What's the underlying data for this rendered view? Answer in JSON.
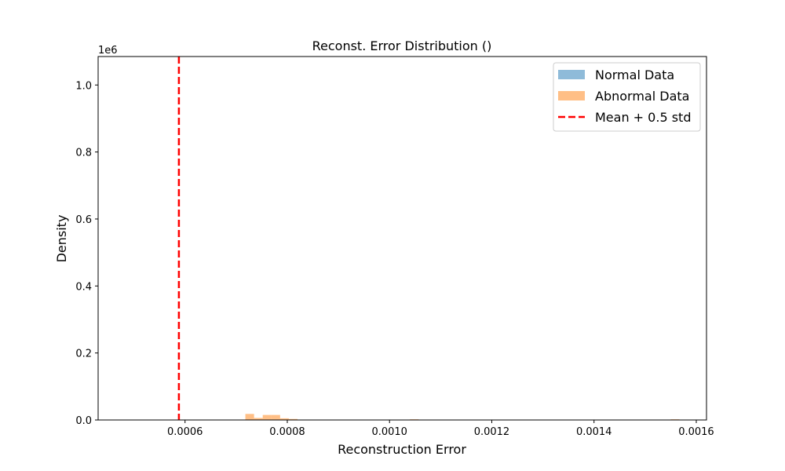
{
  "chart_data": {
    "type": "histogram",
    "title": "Reconst. Error Distribution ()",
    "xlabel": "Reconstruction Error",
    "ylabel": "Density",
    "y_offset_text": "1e6",
    "xlim": [
      0.00043,
      0.00162
    ],
    "ylim": [
      0,
      1.085
    ],
    "y_scale": 1000000,
    "x_ticks": [
      0.0006,
      0.0008,
      0.001,
      0.0012,
      0.0014,
      0.0016
    ],
    "x_tick_labels": [
      "0.0006",
      "0.0008",
      "0.0010",
      "0.0012",
      "0.0014",
      "0.0016"
    ],
    "y_ticks": [
      0.0,
      0.2,
      0.4,
      0.6,
      0.8,
      1.0
    ],
    "y_tick_labels": [
      "0.0",
      "0.2",
      "0.4",
      "0.6",
      "0.8",
      "1.0"
    ],
    "grid": false,
    "legend_position": "top-right",
    "series": [
      {
        "name": "Normal Data",
        "kind": "bars",
        "color": "#1f77b4",
        "opacity": 0.5,
        "bins": []
      },
      {
        "name": "Abnormal Data",
        "kind": "bars",
        "color": "#ff7f0e",
        "opacity": 0.5,
        "bins": [
          {
            "x0": 0.000718,
            "x1": 0.000735,
            "y": 0.018
          },
          {
            "x0": 0.000735,
            "x1": 0.000752,
            "y": 0.006
          },
          {
            "x0": 0.000752,
            "x1": 0.000769,
            "y": 0.015
          },
          {
            "x0": 0.000769,
            "x1": 0.000786,
            "y": 0.015
          },
          {
            "x0": 0.000786,
            "x1": 0.000803,
            "y": 0.005
          },
          {
            "x0": 0.000803,
            "x1": 0.00082,
            "y": 0.003
          },
          {
            "x0": 0.00082,
            "x1": 0.000837,
            "y": 0.001
          },
          {
            "x0": 0.00104,
            "x1": 0.001057,
            "y": 0.002
          },
          {
            "x0": 0.00155,
            "x1": 0.001567,
            "y": 0.002
          }
        ]
      },
      {
        "name": "Mean + 0.5 std",
        "kind": "vline",
        "color": "#ff0000",
        "x": 0.000588
      }
    ]
  }
}
